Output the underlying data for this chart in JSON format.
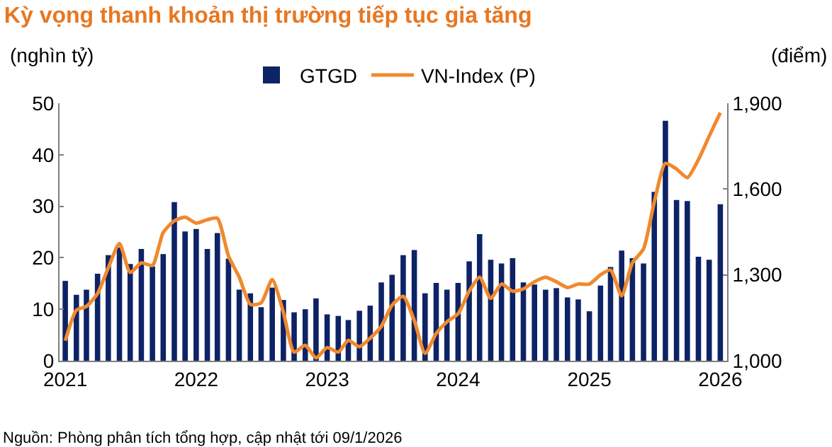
{
  "chart_data": {
    "type": "bar",
    "title": "Kỳ vọng thanh khoản thị trường tiếp tục gia tăng",
    "ylabel": "(nghìn tỷ)",
    "y2label": "(điểm)",
    "x": [
      "2021-01",
      "2021-02",
      "2021-03",
      "2021-04",
      "2021-05",
      "2021-06",
      "2021-07",
      "2021-08",
      "2021-09",
      "2021-10",
      "2021-11",
      "2021-12",
      "2022-01",
      "2022-02",
      "2022-03",
      "2022-04",
      "2022-05",
      "2022-06",
      "2022-07",
      "2022-08",
      "2022-09",
      "2022-10",
      "2022-11",
      "2022-12",
      "2023-01",
      "2023-02",
      "2023-03",
      "2023-04",
      "2023-05",
      "2023-06",
      "2023-07",
      "2023-08",
      "2023-09",
      "2023-10",
      "2023-11",
      "2023-12",
      "2024-01",
      "2024-02",
      "2024-03",
      "2024-04",
      "2024-05",
      "2024-06",
      "2024-07",
      "2024-08",
      "2024-09",
      "2024-10",
      "2024-11",
      "2024-12",
      "2025-01",
      "2025-02",
      "2025-03",
      "2025-04",
      "2025-05",
      "2025-06",
      "2025-07",
      "2025-08",
      "2025-09",
      "2025-10",
      "2025-11",
      "2025-12",
      "2026-01"
    ],
    "series": [
      {
        "name": "GTGD",
        "color": "#0d2366",
        "values": [
          15.5,
          12.8,
          13.8,
          16.9,
          20.5,
          22,
          18.8,
          21.7,
          18.3,
          20.7,
          30.8,
          25.1,
          25.6,
          21.7,
          24.8,
          19.8,
          13.8,
          13.1,
          10.4,
          14.2,
          11.8,
          9.4,
          10.0,
          12.1,
          9.0,
          8.7,
          7.9,
          9.7,
          10.7,
          15.2,
          16.7,
          20.5,
          21.5,
          13.1,
          15.1,
          13.8,
          15.1,
          19.3,
          24.6,
          19.6,
          18.9,
          19.9,
          15.2,
          14.8,
          13.8,
          14.1,
          12.3,
          11.9,
          9.6,
          14.6,
          18.2,
          21.4,
          19.9,
          18.9,
          32.8,
          46.6,
          31.2,
          31.0,
          20.2,
          19.6,
          30.4
        ]
      },
      {
        "name": "VN-Index (P)",
        "type": "line",
        "axis": "y2",
        "color": "#f0892d",
        "values": [
          1070,
          1177,
          1190,
          1235,
          1325,
          1410,
          1309,
          1342,
          1333,
          1448,
          1489,
          1502,
          1481,
          1493,
          1498,
          1366,
          1292,
          1197,
          1202,
          1284,
          1169,
          1030,
          1054,
          1010,
          1046,
          1030,
          1071,
          1049,
          1079,
          1120,
          1194,
          1225,
          1140,
          1026,
          1095,
          1136,
          1164,
          1243,
          1292,
          1218,
          1268,
          1243,
          1251,
          1276,
          1292,
          1276,
          1256,
          1268,
          1268,
          1300,
          1317,
          1227,
          1342,
          1391,
          1555,
          1690,
          1670,
          1640,
          1703,
          1785,
          1867
        ]
      }
    ],
    "xlim": [
      "2020-12-16",
      "2026-01-20"
    ],
    "xticks": [
      {
        "value": "2021-01",
        "label": "2021"
      },
      {
        "value": "2022-01",
        "label": "2022"
      },
      {
        "value": "2023-01",
        "label": "2023"
      },
      {
        "value": "2024-01",
        "label": "2024"
      },
      {
        "value": "2025-01",
        "label": "2025"
      },
      {
        "value": "2026-01",
        "label": "2026"
      }
    ],
    "ylim": [
      0,
      50
    ],
    "yticks": [
      0,
      10,
      20,
      30,
      40,
      50
    ],
    "y2lim": [
      1000,
      1900
    ],
    "y2ticks": [
      {
        "value": 1000,
        "label": "1,000"
      },
      {
        "value": 1300,
        "label": "1,300"
      },
      {
        "value": 1600,
        "label": "1,600"
      },
      {
        "value": 1900,
        "label": "1,900"
      }
    ],
    "legend": "top",
    "annotations": [
      "Nguồn: Phòng phân tích tổng hợp, cập nhật tới 09/1/2026"
    ]
  }
}
